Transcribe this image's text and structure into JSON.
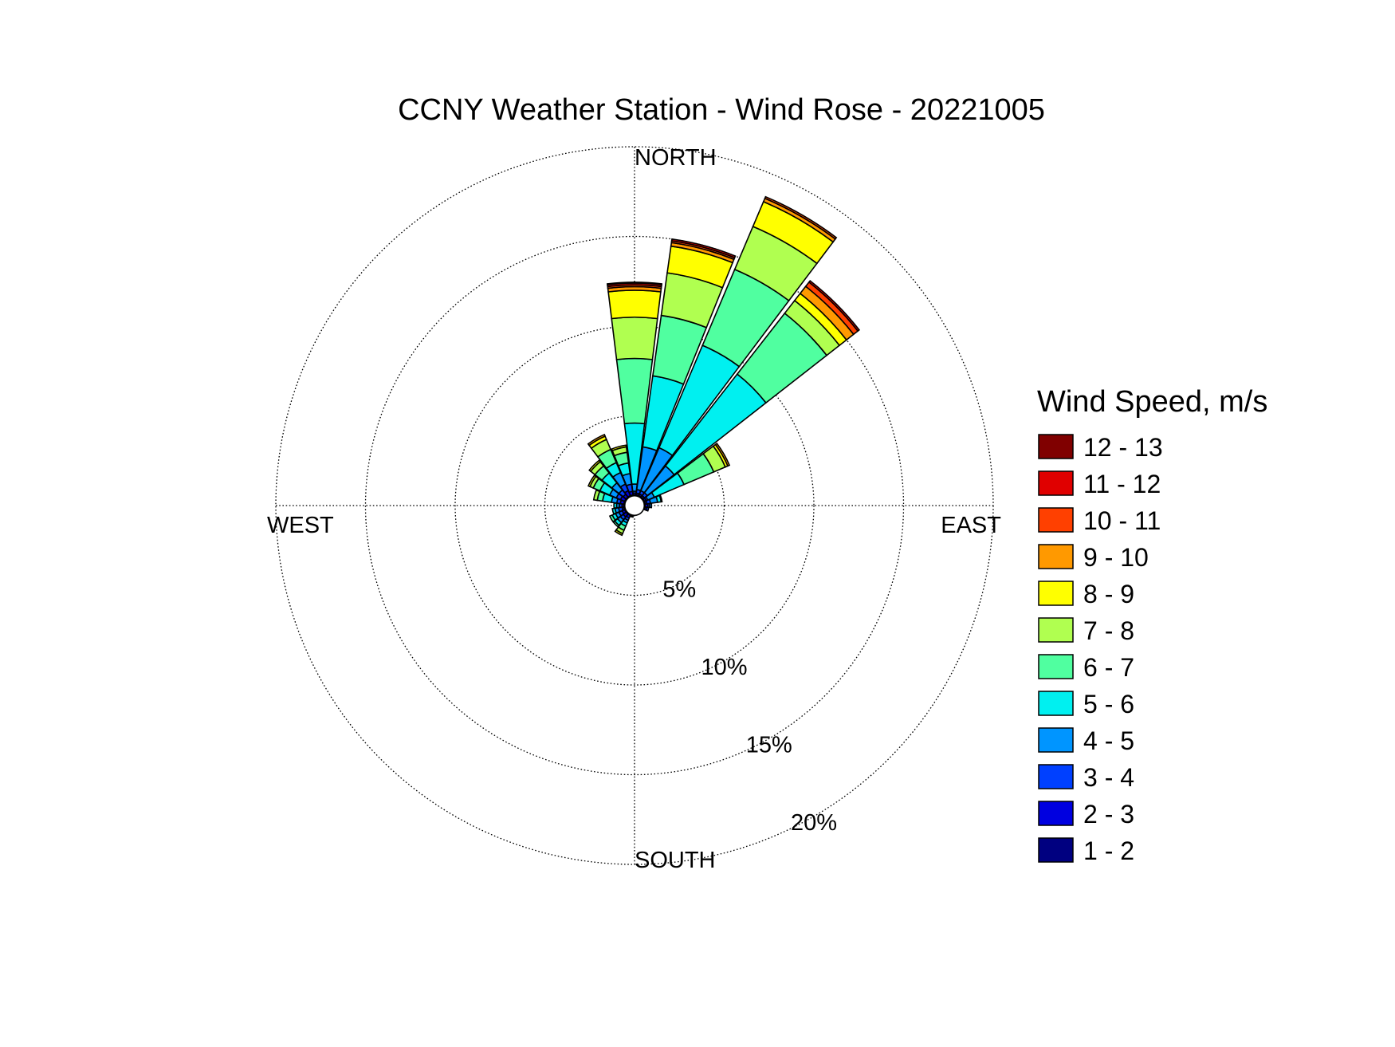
{
  "chart_data": {
    "type": "wind_rose",
    "title": "CCNY Weather Station - Wind Rose - 20221005",
    "directions": {
      "north": "NORTH",
      "east": "EAST",
      "south": "SOUTH",
      "west": "WEST"
    },
    "radial_axis": {
      "unit": "%",
      "max": 20,
      "rings": [
        5,
        10,
        15,
        20
      ],
      "ring_labels": [
        "5%",
        "10%",
        "15%",
        "20%"
      ],
      "grid": true,
      "calm_center": 0.5
    },
    "legend": {
      "title": "Wind Speed, m/s",
      "placement": "right",
      "bins": [
        "12 - 13",
        "11 - 12",
        "10 - 11",
        "9 - 10",
        "8 - 9",
        "7 - 8",
        "6 - 7",
        "5 - 6",
        "4 - 5",
        "3 - 4",
        "2 - 3",
        "1 - 2"
      ],
      "colors": [
        "#800000",
        "#e00000",
        "#ff4000",
        "#ff9900",
        "#ffff00",
        "#b0ff50",
        "#50ffa0",
        "#00f0f0",
        "#0095ff",
        "#0040ff",
        "#0000e0",
        "#000080"
      ]
    },
    "stack_order_inner_to_outer": [
      "1 - 2",
      "2 - 3",
      "3 - 4",
      "4 - 5",
      "5 - 6",
      "6 - 7",
      "7 - 8",
      "8 - 9",
      "9 - 10",
      "10 - 11",
      "11 - 12",
      "12 - 13"
    ],
    "sector_width_deg": 14,
    "sectors": [
      {
        "direction_deg": 0,
        "cumulative_percent": [
          0.6,
          0.7,
          0.8,
          1.2,
          4.6,
          8.2,
          10.5,
          12.0,
          12.2,
          12.3,
          12.4,
          12.45
        ]
      },
      {
        "direction_deg": 15,
        "cumulative_percent": [
          0.6,
          0.7,
          0.9,
          3.3,
          7.3,
          10.7,
          13.1,
          14.6,
          14.8,
          14.9,
          15.0
        ]
      },
      {
        "direction_deg": 30,
        "cumulative_percent": [
          0.6,
          0.7,
          0.9,
          3.5,
          9.7,
          14.3,
          16.9,
          18.4,
          18.6,
          18.7
        ]
      },
      {
        "direction_deg": 45,
        "cumulative_percent": [
          0.6,
          0.7,
          0.9,
          2.8,
          9.3,
          13.6,
          14.5,
          15.0,
          15.5,
          15.8,
          15.9
        ]
      },
      {
        "direction_deg": 60,
        "cumulative_percent": [
          0.6,
          0.7,
          0.8,
          1.2,
          3.0,
          4.8,
          5.5,
          5.65,
          5.75
        ]
      },
      {
        "direction_deg": 75,
        "cumulative_percent": [
          0.6,
          0.7,
          0.9,
          1.3,
          1.5,
          1.55
        ]
      },
      {
        "direction_deg": 90,
        "cumulative_percent": [
          0.6,
          0.75,
          0.85,
          0.95
        ]
      },
      {
        "direction_deg": 105,
        "cumulative_percent": [
          0.6,
          0.7,
          0.8
        ]
      },
      {
        "direction_deg": 195,
        "cumulative_percent": [
          0.6,
          0.65
        ]
      },
      {
        "direction_deg": 210,
        "cumulative_percent": [
          0.6,
          0.75,
          0.9,
          1.05,
          1.25,
          1.5,
          1.7,
          1.8
        ]
      },
      {
        "direction_deg": 225,
        "cumulative_percent": [
          0.6,
          0.8,
          1.0,
          1.2,
          1.4,
          1.5
        ]
      },
      {
        "direction_deg": 240,
        "cumulative_percent": [
          0.6,
          0.75,
          0.95,
          1.15,
          1.35,
          1.5
        ]
      },
      {
        "direction_deg": 255,
        "cumulative_percent": [
          0.6,
          0.7,
          0.9,
          1.1,
          1.25
        ]
      },
      {
        "direction_deg": 270,
        "cumulative_percent": [
          0.6,
          0.7,
          0.85,
          1.0,
          1.15
        ]
      },
      {
        "direction_deg": 285,
        "cumulative_percent": [
          0.6,
          0.8,
          1.0,
          1.3,
          1.8,
          2.1,
          2.3
        ]
      },
      {
        "direction_deg": 300,
        "cumulative_percent": [
          0.6,
          0.85,
          1.1,
          1.5,
          2.1,
          2.5,
          2.7,
          2.8
        ]
      },
      {
        "direction_deg": 315,
        "cumulative_percent": [
          0.6,
          0.8,
          1.1,
          1.6,
          2.3,
          2.8,
          3.1,
          3.2
        ]
      },
      {
        "direction_deg": 330,
        "cumulative_percent": [
          0.6,
          0.9,
          1.3,
          2.0,
          2.6,
          3.4,
          4.0,
          4.2,
          4.3
        ]
      },
      {
        "direction_deg": 345,
        "cumulative_percent": [
          0.6,
          0.8,
          1.2,
          1.8,
          2.4,
          3.0,
          3.3,
          3.4
        ]
      }
    ]
  }
}
